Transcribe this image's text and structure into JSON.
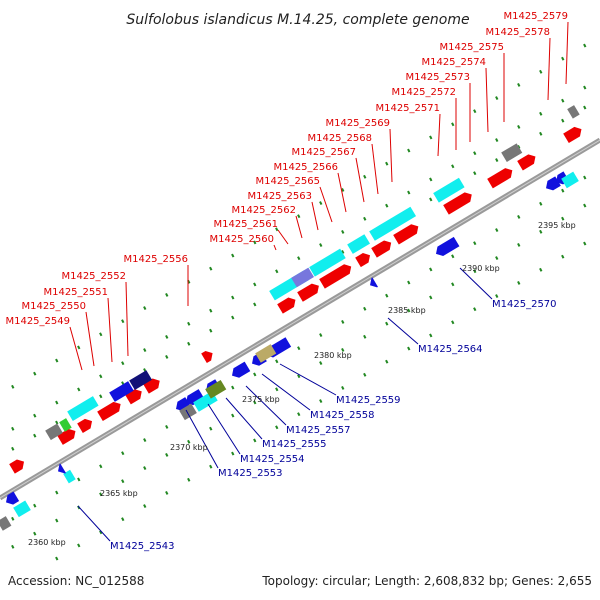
{
  "title": "Sulfolobus islandicus M.14.25, complete genome",
  "footer": {
    "accession": "Accession: NC_012588",
    "summary": "Topology: circular; Length: 2,608,832 bp; Genes: 2,655"
  },
  "colors": {
    "forward": "#ee0000",
    "reverse": "#1111dd",
    "label_forward": "#dd0000",
    "label_reverse": "#000099",
    "backbone": "#9a9a9a",
    "tick": "#228822",
    "cyan": "#11eeee",
    "navy": "#111177",
    "gray": "#777777",
    "purple": "#7777dd",
    "olive": "#668822",
    "khaki": "#bbaa66",
    "green": "#33cc33"
  },
  "axis_ticks": [
    {
      "label": "2360 kbp"
    },
    {
      "label": "2365 kbp"
    },
    {
      "label": "2370 kbp"
    },
    {
      "label": "2375 kbp"
    },
    {
      "label": "2380 kbp"
    },
    {
      "label": "2385 kbp"
    },
    {
      "label": "2390 kbp"
    },
    {
      "label": "2395 kbp"
    }
  ],
  "forward_labels": [
    "M1425_2549",
    "M1425_2550",
    "M1425_2551",
    "M1425_2552",
    "M1425_2556",
    "M1425_2560",
    "M1425_2561",
    "M1425_2562",
    "M1425_2563",
    "M1425_2565",
    "M1425_2566",
    "M1425_2567",
    "M1425_2568",
    "M1425_2569",
    "M1425_2571",
    "M1425_2572",
    "M1425_2573",
    "M1425_2574",
    "M1425_2575",
    "M1425_2578",
    "M1425_2579"
  ],
  "reverse_labels": [
    "M1425_2543",
    "M1425_2553",
    "M1425_2554",
    "M1425_2555",
    "M1425_2557",
    "M1425_2558",
    "M1425_2559",
    "M1425_2564",
    "M1425_2570"
  ]
}
